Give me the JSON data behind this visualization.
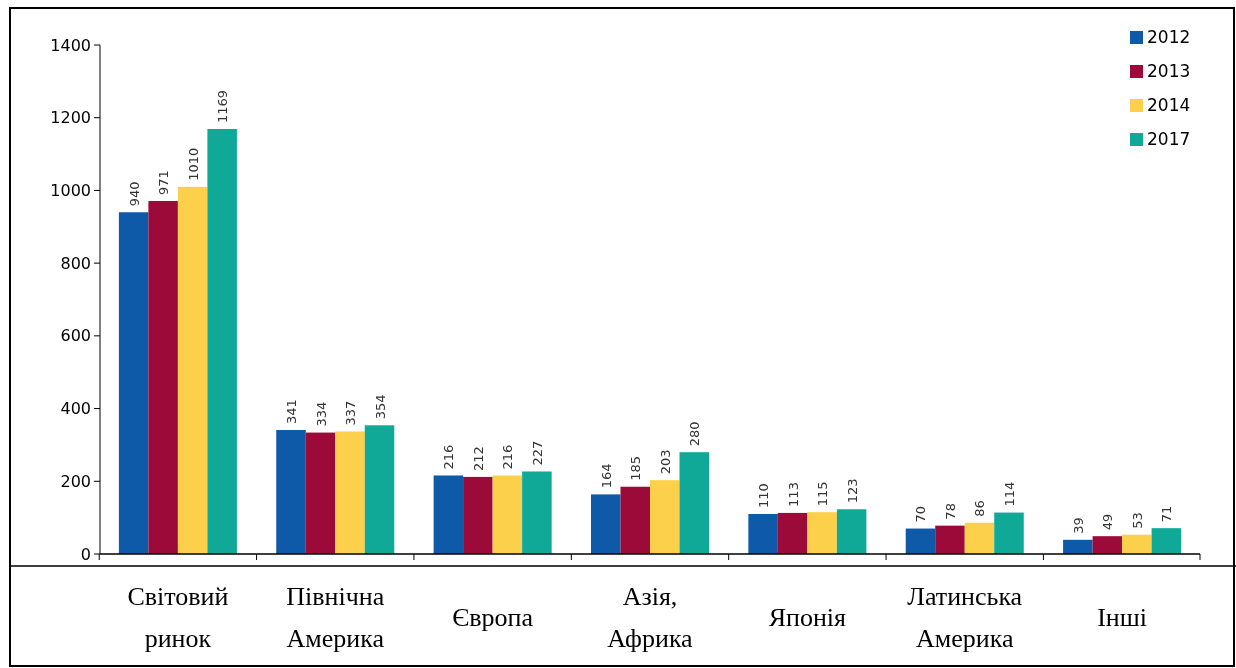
{
  "chart_data": {
    "type": "bar",
    "categories": [
      "Світовий ринок",
      "Північна Америка",
      "Європа",
      "Азія, Африка",
      "Японія",
      "Латинська Америка",
      "Інші"
    ],
    "series": [
      {
        "name": "2012",
        "color": "#0f5aa8",
        "values": [
          940,
          341,
          216,
          164,
          110,
          70,
          39
        ]
      },
      {
        "name": "2013",
        "color": "#9c0a3a",
        "values": [
          971,
          334,
          212,
          185,
          113,
          78,
          49
        ]
      },
      {
        "name": "2014",
        "color": "#fcd04a",
        "values": [
          1010,
          337,
          216,
          203,
          115,
          86,
          53
        ]
      },
      {
        "name": "2017",
        "color": "#10a896",
        "values": [
          1169,
          354,
          227,
          280,
          123,
          114,
          71
        ]
      }
    ],
    "ylim": [
      0,
      1400
    ],
    "yticks": [
      0,
      200,
      400,
      600,
      800,
      1000,
      1200,
      1400
    ],
    "data_labels": true,
    "legend": "top right",
    "grid": false
  }
}
